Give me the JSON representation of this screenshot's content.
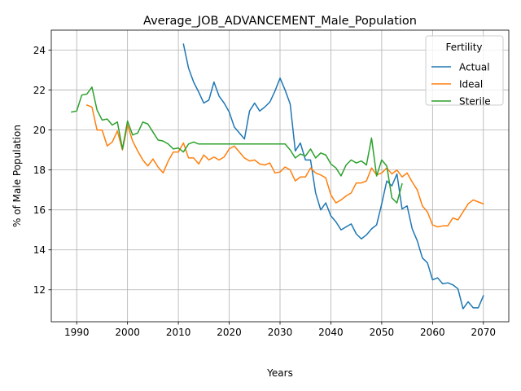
{
  "chart_data": {
    "type": "line",
    "title": "Average_JOB_ADVANCEMENT_Male_Population",
    "xlabel": "Years",
    "ylabel": "% of Male Population",
    "xlim": [
      1985,
      2075
    ],
    "ylim": [
      10.4,
      25.0
    ],
    "xticks": [
      1990,
      2000,
      2010,
      2020,
      2030,
      2040,
      2050,
      2060,
      2070
    ],
    "yticks": [
      12,
      14,
      16,
      18,
      20,
      22,
      24
    ],
    "grid": true,
    "legend": {
      "title": "Fertility",
      "location": "top-right"
    },
    "series": [
      {
        "name": "Actual",
        "color": "#1f77b4",
        "x": [
          2011,
          2012,
          2013,
          2014,
          2015,
          2016,
          2017,
          2018,
          2019,
          2020,
          2021,
          2022,
          2023,
          2024,
          2025,
          2026,
          2027,
          2028,
          2029,
          2030,
          2031,
          2032,
          2033,
          2034,
          2035,
          2036,
          2037,
          2038,
          2039,
          2040,
          2041,
          2042,
          2043,
          2044,
          2045,
          2046,
          2047,
          2048,
          2049,
          2050,
          2051,
          2052,
          2053,
          2054,
          2055,
          2056,
          2057,
          2058,
          2059,
          2060,
          2061,
          2062,
          2063,
          2064,
          2065,
          2066,
          2067,
          2068,
          2069,
          2070
        ],
        "y": [
          24.3,
          23.1,
          22.4,
          21.9,
          21.35,
          21.5,
          22.4,
          21.7,
          21.35,
          20.9,
          20.15,
          19.85,
          19.55,
          20.95,
          21.35,
          20.95,
          21.15,
          21.4,
          21.95,
          22.6,
          22.0,
          21.3,
          18.95,
          19.35,
          18.5,
          18.5,
          16.85,
          16.0,
          16.35,
          15.7,
          15.4,
          15.0,
          15.15,
          15.3,
          14.8,
          14.55,
          14.75,
          15.05,
          15.25,
          16.3,
          17.45,
          17.2,
          17.8,
          16.05,
          16.2,
          15.05,
          14.45,
          13.6,
          13.35,
          12.5,
          12.6,
          12.3,
          12.35,
          12.25,
          12.05,
          11.05,
          11.4,
          11.1,
          11.1,
          11.7
        ]
      },
      {
        "name": "Ideal",
        "color": "#ff7f0e",
        "x": [
          1992,
          1993,
          1994,
          1995,
          1996,
          1997,
          1998,
          1999,
          2000,
          2001,
          2002,
          2003,
          2004,
          2005,
          2006,
          2007,
          2008,
          2009,
          2010,
          2011,
          2012,
          2013,
          2014,
          2015,
          2016,
          2017,
          2018,
          2019,
          2020,
          2021,
          2022,
          2023,
          2024,
          2025,
          2026,
          2027,
          2028,
          2029,
          2030,
          2031,
          2032,
          2033,
          2034,
          2035,
          2036,
          2037,
          2038,
          2039,
          2040,
          2041,
          2042,
          2043,
          2044,
          2045,
          2046,
          2047,
          2048,
          2049,
          2050,
          2051,
          2052,
          2053,
          2054,
          2055,
          2056,
          2057,
          2058,
          2059,
          2060,
          2061,
          2062,
          2063,
          2064,
          2065,
          2066,
          2067,
          2068,
          2069,
          2070
        ],
        "y": [
          21.25,
          21.15,
          20.0,
          20.0,
          19.2,
          19.4,
          19.95,
          19.0,
          20.25,
          19.45,
          18.95,
          18.5,
          18.2,
          18.55,
          18.15,
          17.85,
          18.45,
          18.9,
          18.9,
          19.35,
          18.6,
          18.6,
          18.3,
          18.75,
          18.5,
          18.65,
          18.5,
          18.65,
          19.05,
          19.2,
          18.9,
          18.6,
          18.45,
          18.5,
          18.3,
          18.25,
          18.35,
          17.85,
          17.9,
          18.15,
          18.0,
          17.45,
          17.65,
          17.65,
          18.1,
          17.85,
          17.75,
          17.6,
          16.75,
          16.35,
          16.5,
          16.7,
          16.85,
          17.35,
          17.35,
          17.45,
          18.1,
          17.75,
          17.85,
          18.1,
          17.8,
          18.0,
          17.65,
          17.85,
          17.4,
          17.0,
          16.2,
          15.9,
          15.25,
          15.15,
          15.2,
          15.2,
          15.6,
          15.5,
          15.9,
          16.3,
          16.5,
          16.4,
          16.3
        ]
      },
      {
        "name": "Sterile",
        "color": "#2ca02c",
        "x": [
          1989,
          1990,
          1991,
          1992,
          1993,
          1994,
          1995,
          1996,
          1997,
          1998,
          1999,
          2000,
          2001,
          2002,
          2003,
          2004,
          2005,
          2006,
          2007,
          2008,
          2009,
          2010,
          2011,
          2012,
          2013,
          2014,
          2015,
          2016,
          2017,
          2018,
          2019,
          2020,
          2021,
          2022,
          2023,
          2024,
          2025,
          2026,
          2027,
          2028,
          2029,
          2030,
          2031,
          2032,
          2033,
          2034,
          2035,
          2036,
          2037,
          2038,
          2039,
          2040,
          2041,
          2042,
          2043,
          2044,
          2045,
          2046,
          2047,
          2048,
          2049,
          2050,
          2051,
          2052,
          2053,
          2054
        ],
        "y": [
          20.9,
          20.95,
          21.75,
          21.8,
          22.15,
          21.0,
          20.5,
          20.55,
          20.25,
          20.4,
          19.05,
          20.45,
          19.75,
          19.85,
          20.4,
          20.3,
          19.9,
          19.5,
          19.45,
          19.3,
          19.05,
          19.1,
          18.9,
          19.3,
          19.4,
          19.3,
          19.3,
          19.3,
          19.3,
          19.3,
          19.3,
          19.3,
          19.3,
          19.3,
          19.3,
          19.3,
          19.3,
          19.3,
          19.3,
          19.3,
          19.3,
          19.3,
          19.3,
          19.0,
          18.6,
          18.8,
          18.7,
          19.05,
          18.6,
          18.85,
          18.75,
          18.3,
          18.1,
          17.7,
          18.25,
          18.5,
          18.35,
          18.45,
          18.25,
          19.6,
          17.7,
          18.5,
          18.2,
          16.6,
          16.35,
          17.3
        ]
      }
    ]
  }
}
